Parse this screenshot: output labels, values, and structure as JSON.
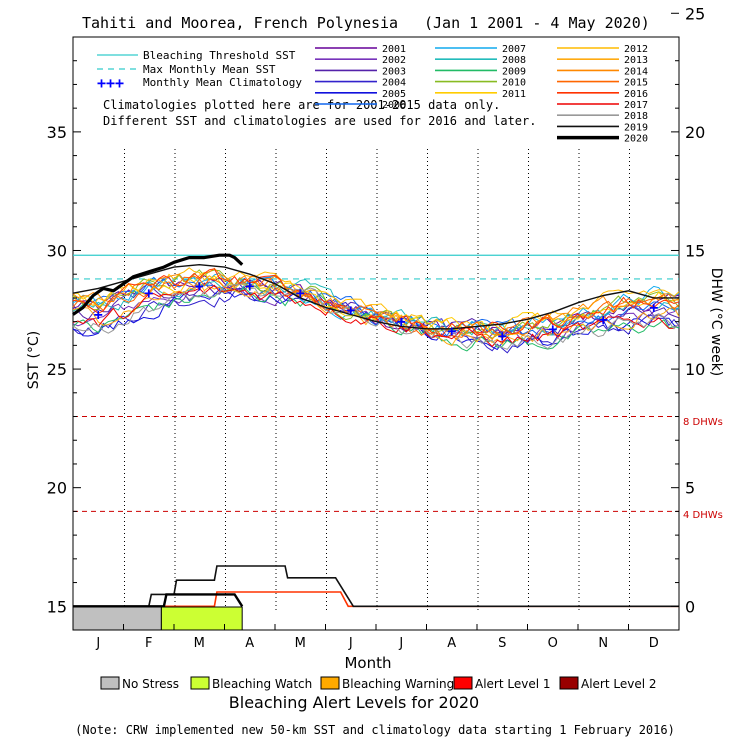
{
  "chart_data": {
    "type": "line",
    "title": "Tahiti and Moorea, French Polynesia",
    "date_range": "(Jan 1 2001 - 4 May 2020)",
    "xlabel": "Month",
    "ylabel_left": "SST (°C)",
    "ylabel_right": "DHW (°C week)",
    "months": [
      "J",
      "F",
      "M",
      "A",
      "M",
      "J",
      "J",
      "A",
      "S",
      "O",
      "N",
      "D"
    ],
    "y_left": {
      "range": [
        14,
        39
      ],
      "ticks": [
        15,
        20,
        25,
        30,
        35
      ]
    },
    "y_right": {
      "range": [
        0,
        25
      ],
      "ticks": [
        0,
        5,
        10,
        15,
        20,
        25
      ]
    },
    "grid": "dotted vertical lines at month boundaries",
    "legend_reference": [
      {
        "label": "Bleaching Threshold SST",
        "color": "#33cccc",
        "style": "solid"
      },
      {
        "label": "Max Monthly Mean SST",
        "color": "#33cccc",
        "style": "dashed"
      },
      {
        "label": "Monthly Mean Climatology",
        "color": "#0000ff",
        "style": "plus"
      }
    ],
    "notes": [
      "Climatologies plotted here are for 2001-2015 data only.",
      "Different SST and climatologies are used for 2016 and later."
    ],
    "thresholds": {
      "bleaching_threshold_sst": 29.8,
      "max_monthly_mean_sst": 28.8
    },
    "dhw_reference_lines": [
      {
        "label": "8 DHWs",
        "value": 8
      },
      {
        "label": "4 DHWs",
        "value": 4
      }
    ],
    "monthly_mean_climatology": [
      27.3,
      28.2,
      28.5,
      28.5,
      28.2,
      27.5,
      27.0,
      26.6,
      26.4,
      26.7,
      27.1,
      27.6
    ],
    "years": [
      {
        "name": "2001",
        "color": "#660099"
      },
      {
        "name": "2002",
        "color": "#7733bb"
      },
      {
        "name": "2003",
        "color": "#5522aa"
      },
      {
        "name": "2004",
        "color": "#3322cc"
      },
      {
        "name": "2005",
        "color": "#1111dd"
      },
      {
        "name": "2006",
        "color": "#1166ee"
      },
      {
        "name": "2007",
        "color": "#11aaee"
      },
      {
        "name": "2008",
        "color": "#22bbbb"
      },
      {
        "name": "2009",
        "color": "#22bb66"
      },
      {
        "name": "2010",
        "color": "#88bb22"
      },
      {
        "name": "2011",
        "color": "#ffcc00"
      },
      {
        "name": "2012",
        "color": "#ffbb00"
      },
      {
        "name": "2013",
        "color": "#ffaa11"
      },
      {
        "name": "2014",
        "color": "#ff8800"
      },
      {
        "name": "2015",
        "color": "#ff6600"
      },
      {
        "name": "2016",
        "color": "#ff3300"
      },
      {
        "name": "2017",
        "color": "#ee0000"
      },
      {
        "name": "2018",
        "color": "#999999"
      },
      {
        "name": "2019",
        "color": "#111111"
      },
      {
        "name": "2020",
        "color": "#000000"
      }
    ],
    "series_2020_sst": [
      {
        "x": 0.0,
        "y": 27.3
      },
      {
        "x": 0.2,
        "y": 27.6
      },
      {
        "x": 0.4,
        "y": 28.1
      },
      {
        "x": 0.6,
        "y": 28.4
      },
      {
        "x": 0.8,
        "y": 28.3
      },
      {
        "x": 1.0,
        "y": 28.6
      },
      {
        "x": 1.2,
        "y": 28.9
      },
      {
        "x": 1.5,
        "y": 29.1
      },
      {
        "x": 1.8,
        "y": 29.3
      },
      {
        "x": 2.0,
        "y": 29.5
      },
      {
        "x": 2.3,
        "y": 29.7
      },
      {
        "x": 2.6,
        "y": 29.7
      },
      {
        "x": 2.9,
        "y": 29.8
      },
      {
        "x": 3.1,
        "y": 29.8
      },
      {
        "x": 3.2,
        "y": 29.7
      },
      {
        "x": 3.35,
        "y": 29.4
      }
    ],
    "series_2019_sst": [
      {
        "x": 0.0,
        "y": 28.2
      },
      {
        "x": 0.5,
        "y": 28.4
      },
      {
        "x": 1.0,
        "y": 28.7
      },
      {
        "x": 1.5,
        "y": 29.0
      },
      {
        "x": 2.0,
        "y": 29.3
      },
      {
        "x": 2.5,
        "y": 29.4
      },
      {
        "x": 3.0,
        "y": 29.3
      },
      {
        "x": 3.5,
        "y": 29.0
      },
      {
        "x": 4.0,
        "y": 28.6
      },
      {
        "x": 4.5,
        "y": 28.0
      },
      {
        "x": 5.0,
        "y": 27.6
      },
      {
        "x": 5.5,
        "y": 27.3
      },
      {
        "x": 6.0,
        "y": 27.0
      },
      {
        "x": 6.5,
        "y": 26.8
      },
      {
        "x": 7.0,
        "y": 26.7
      },
      {
        "x": 7.5,
        "y": 26.7
      },
      {
        "x": 8.0,
        "y": 26.8
      },
      {
        "x": 8.5,
        "y": 26.9
      },
      {
        "x": 9.0,
        "y": 27.1
      },
      {
        "x": 9.5,
        "y": 27.4
      },
      {
        "x": 10.0,
        "y": 27.8
      },
      {
        "x": 10.5,
        "y": 28.1
      },
      {
        "x": 11.0,
        "y": 28.3
      },
      {
        "x": 11.5,
        "y": 28.0
      },
      {
        "x": 12.0,
        "y": 28.0
      }
    ],
    "dhw_2020": [
      {
        "x": 0.0,
        "y": 0
      },
      {
        "x": 1.8,
        "y": 0
      },
      {
        "x": 1.85,
        "y": 0.5
      },
      {
        "x": 3.2,
        "y": 0.5
      },
      {
        "x": 3.35,
        "y": 0
      }
    ],
    "dhw_2019": [
      {
        "x": 0.0,
        "y": 0
      },
      {
        "x": 1.5,
        "y": 0
      },
      {
        "x": 1.55,
        "y": 0.5
      },
      {
        "x": 2.0,
        "y": 0.5
      },
      {
        "x": 2.05,
        "y": 1.1
      },
      {
        "x": 2.8,
        "y": 1.1
      },
      {
        "x": 2.85,
        "y": 1.7
      },
      {
        "x": 4.2,
        "y": 1.7
      },
      {
        "x": 4.25,
        "y": 1.2
      },
      {
        "x": 5.2,
        "y": 1.2
      },
      {
        "x": 5.55,
        "y": 0
      },
      {
        "x": 12.0,
        "y": 0
      }
    ],
    "dhw_2016": [
      {
        "x": 0.0,
        "y": 0
      },
      {
        "x": 2.8,
        "y": 0
      },
      {
        "x": 2.85,
        "y": 0.6
      },
      {
        "x": 5.3,
        "y": 0.6
      },
      {
        "x": 5.45,
        "y": 0
      },
      {
        "x": 12.0,
        "y": 0
      }
    ],
    "alert_bar_2020": [
      {
        "start": 0.0,
        "end": 1.75,
        "level": "No Stress"
      },
      {
        "start": 1.75,
        "end": 3.35,
        "level": "Bleaching Watch"
      }
    ],
    "alert_levels": [
      {
        "label": "No Stress",
        "color": "#c0c0c0"
      },
      {
        "label": "Bleaching Watch",
        "color": "#ccff33"
      },
      {
        "label": "Bleaching Warning",
        "color": "#ffaa00"
      },
      {
        "label": "Alert Level 1",
        "color": "#ff0000"
      },
      {
        "label": "Alert Level 2",
        "color": "#990000"
      }
    ],
    "alert_title": "Bleaching Alert Levels for 2020",
    "footnote": "(Note: CRW implemented new 50-km SST and climatology data starting 1 February 2016)"
  }
}
